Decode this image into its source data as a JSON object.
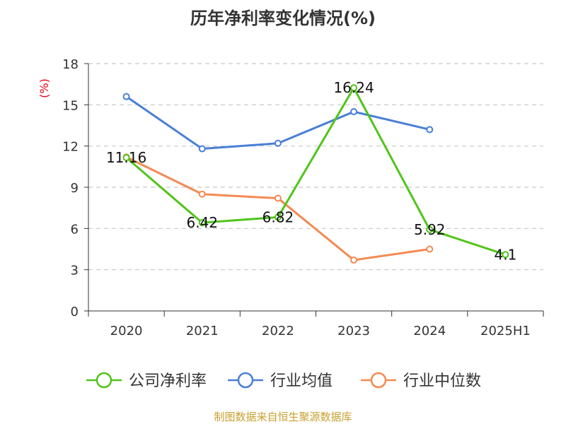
{
  "chart_data": {
    "type": "line",
    "title": "历年净利率变化情况(%)",
    "ylabel": "(%)",
    "ylim": [
      0,
      18
    ],
    "yticks": [
      0,
      3,
      6,
      9,
      12,
      15,
      18
    ],
    "grid": true,
    "legend_position": "bottom",
    "categories": [
      "2020",
      "2021",
      "2022",
      "2023",
      "2024",
      "2025H1"
    ],
    "series": [
      {
        "name": "公司净利率",
        "color": "#52c41a",
        "values": [
          11.16,
          6.42,
          6.82,
          16.24,
          5.92,
          4.1
        ],
        "labels": [
          "11.16",
          "6.42",
          "6.82",
          "16.24",
          "5.92",
          "4.1"
        ]
      },
      {
        "name": "行业均值",
        "color": "#4a7fd6",
        "values": [
          15.6,
          11.8,
          12.2,
          14.5,
          13.2,
          null
        ]
      },
      {
        "name": "行业中位数",
        "color": "#f48a52",
        "values": [
          11.2,
          8.5,
          8.2,
          3.7,
          4.5,
          null
        ]
      }
    ],
    "source": "制图数据来自恒生聚源数据库"
  }
}
